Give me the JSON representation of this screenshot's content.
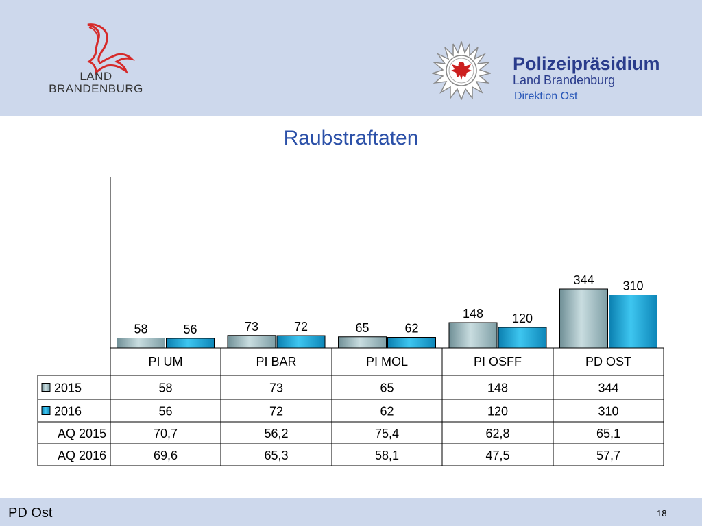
{
  "header": {
    "logo_left_line1": "LAND",
    "logo_left_line2": "BRANDENBURG",
    "org_title": "Polizeipräsidium",
    "org_subtitle": "Land Brandenburg",
    "org_division": "Direktion Ost"
  },
  "footer": {
    "left": "PD Ost",
    "page_number": "18"
  },
  "colors": {
    "header_bg": "#cdd8ec",
    "title": "#2b50a8",
    "series_2015": "#9fb8bc",
    "series_2016": "#1ea6d8"
  },
  "icons": {
    "logo_left": "brandenburg-eagle-icon",
    "logo_police": "police-star-eagle-icon"
  },
  "chart_data": {
    "type": "bar",
    "title": "Raubstraftaten",
    "categories": [
      "PI UM",
      "PI BAR",
      "PI MOL",
      "PI OSFF",
      "PD OST"
    ],
    "ylim": [
      0,
      1000
    ],
    "grid": false,
    "series": [
      {
        "name": "2015",
        "values": [
          58,
          73,
          65,
          148,
          344
        ]
      },
      {
        "name": "2016",
        "values": [
          56,
          72,
          62,
          120,
          310
        ]
      }
    ],
    "table_rows": [
      {
        "label": "2015",
        "legend": true,
        "values": [
          "58",
          "73",
          "65",
          "148",
          "344"
        ]
      },
      {
        "label": "2016",
        "legend": true,
        "values": [
          "56",
          "72",
          "62",
          "120",
          "310"
        ]
      },
      {
        "label": "AQ 2015",
        "legend": false,
        "values": [
          "70,7",
          "56,2",
          "75,4",
          "62,8",
          "65,1"
        ]
      },
      {
        "label": "AQ 2016",
        "legend": false,
        "values": [
          "69,6",
          "65,3",
          "58,1",
          "47,5",
          "57,7"
        ]
      }
    ]
  }
}
